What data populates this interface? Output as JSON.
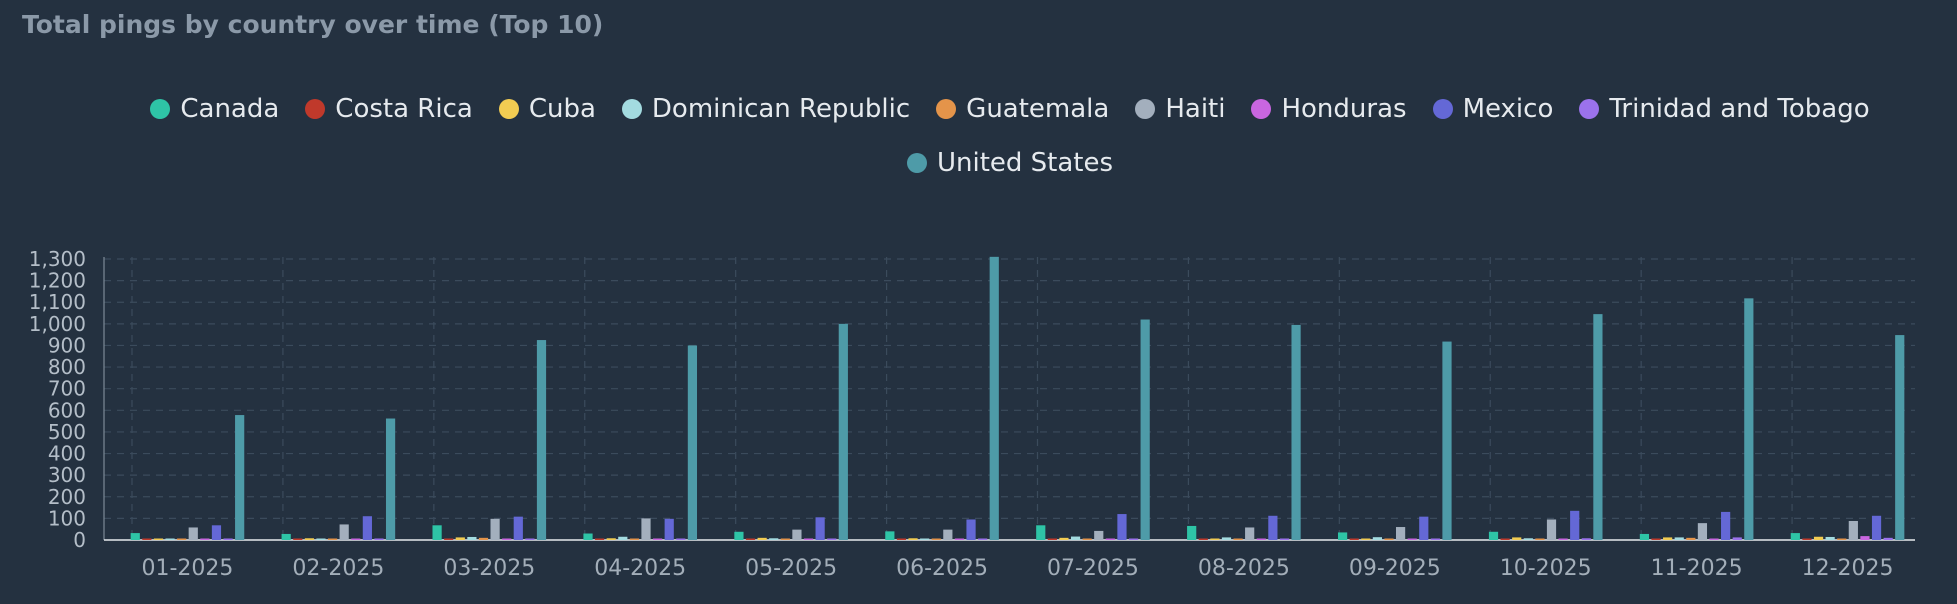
{
  "chart_data": {
    "type": "bar",
    "title": "Total pings by country over time (Top 10)",
    "xlabel": "",
    "ylabel": "",
    "ylim": [
      0,
      1300
    ],
    "yticks": [
      0,
      100,
      200,
      300,
      400,
      500,
      600,
      700,
      800,
      900,
      1000,
      1100,
      1200,
      1300
    ],
    "grid": true,
    "legend_position": "top-center",
    "categories": [
      "01-2025",
      "02-2025",
      "03-2025",
      "04-2025",
      "05-2025",
      "06-2025",
      "07-2025",
      "08-2025",
      "09-2025",
      "10-2025",
      "11-2025",
      "12-2025"
    ],
    "series": [
      {
        "name": "Canada",
        "color": "#2ec4a6",
        "values": [
          32,
          28,
          68,
          30,
          38,
          40,
          68,
          65,
          35,
          38,
          28,
          32
        ]
      },
      {
        "name": "Costa Rica",
        "color": "#c0392b",
        "values": [
          2,
          3,
          3,
          2,
          2,
          2,
          3,
          2,
          2,
          3,
          3,
          4
        ]
      },
      {
        "name": "Cuba",
        "color": "#f2cc52",
        "values": [
          2,
          8,
          12,
          8,
          10,
          8,
          10,
          3,
          5,
          12,
          12,
          15
        ]
      },
      {
        "name": "Dominican Republic",
        "color": "#a3dbe0",
        "values": [
          3,
          4,
          14,
          15,
          8,
          3,
          16,
          12,
          13,
          8,
          12,
          14
        ]
      },
      {
        "name": "Guatemala",
        "color": "#e4944a",
        "values": [
          3,
          3,
          10,
          3,
          3,
          2,
          3,
          2,
          3,
          3,
          10,
          6
        ]
      },
      {
        "name": "Haiti",
        "color": "#a3afbd",
        "values": [
          58,
          72,
          98,
          100,
          48,
          48,
          42,
          58,
          60,
          95,
          78,
          88
        ]
      },
      {
        "name": "Honduras",
        "color": "#c966e0",
        "values": [
          2,
          2,
          2,
          2,
          3,
          2,
          2,
          2,
          2,
          5,
          6,
          18
        ]
      },
      {
        "name": "Mexico",
        "color": "#6468d6",
        "values": [
          68,
          110,
          108,
          98,
          105,
          95,
          120,
          112,
          108,
          135,
          130,
          112
        ]
      },
      {
        "name": "Trinidad and Tobago",
        "color": "#9b72ec",
        "values": [
          2,
          2,
          2,
          2,
          3,
          2,
          3,
          2,
          2,
          8,
          12,
          10
        ]
      },
      {
        "name": "United States",
        "color": "#4e9ba8",
        "values": [
          578,
          562,
          925,
          900,
          1000,
          1310,
          1020,
          995,
          918,
          1045,
          1118,
          948
        ]
      }
    ]
  }
}
